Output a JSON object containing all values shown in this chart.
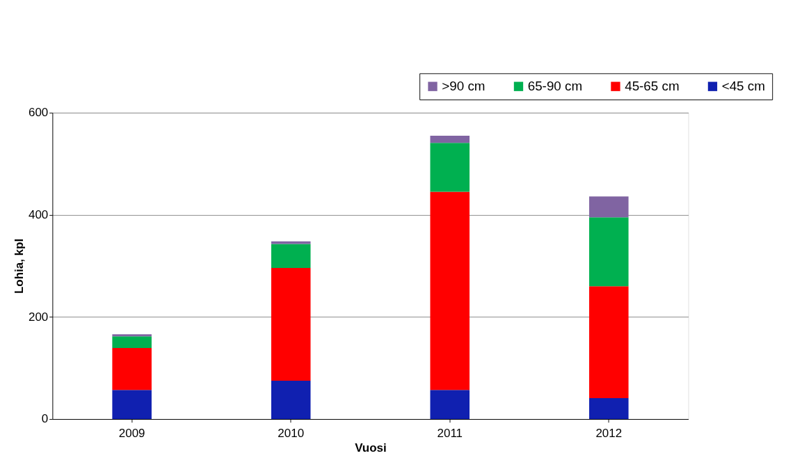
{
  "chart_data": {
    "type": "bar",
    "stacked": true,
    "xlabel": "Vuosi",
    "ylabel": "Lohia, kpl",
    "categories": [
      "2009",
      "2010",
      "2011",
      "2012"
    ],
    "series": [
      {
        "name": "<45 cm",
        "color": "#1020b0",
        "values": [
          57,
          75,
          57,
          41
        ]
      },
      {
        "name": "45-65 cm",
        "color": "#ff0000",
        "values": [
          82,
          221,
          388,
          219
        ]
      },
      {
        "name": "65-90 cm",
        "color": "#00b050",
        "values": [
          23,
          47,
          96,
          135
        ]
      },
      {
        "name": ">90 cm",
        "color": "#8064a2",
        "values": [
          4,
          5,
          14,
          41
        ]
      }
    ],
    "ylim": [
      0,
      600
    ],
    "yticks": [
      0,
      200,
      400,
      600
    ],
    "grid": "y",
    "legend": "top right"
  }
}
